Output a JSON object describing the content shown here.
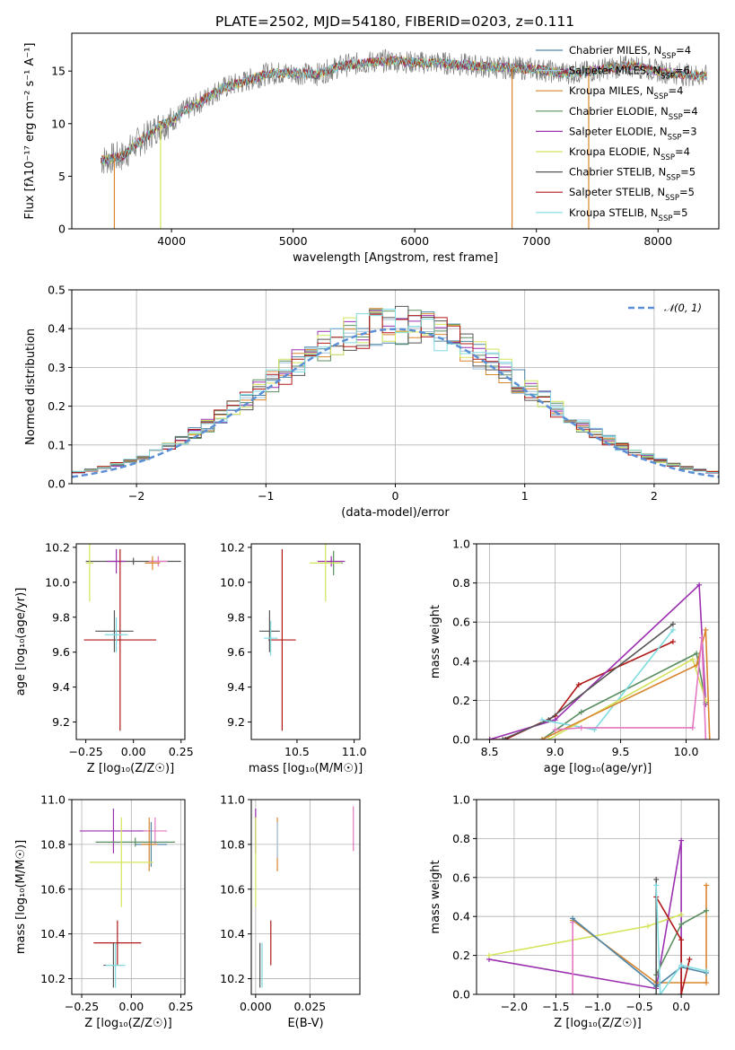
{
  "title": "PLATE=2502, MJD=54180, FIBERID=0203, z=0.111",
  "legend": [
    {
      "label": "Chabrier MILES, N",
      "sub": "SSP",
      "suffix": "=4",
      "color": "#4f86a6"
    },
    {
      "label": "Salpeter MILES, N",
      "sub": "SSP",
      "suffix": "=6",
      "color": "#9fc3dd"
    },
    {
      "label": "Kroupa MILES, N",
      "sub": "SSP",
      "suffix": "=4",
      "color": "#d9852d"
    },
    {
      "label": "Chabrier ELODIE, N",
      "sub": "SSP",
      "suffix": "=4",
      "color": "#5a8e60"
    },
    {
      "label": "Salpeter ELODIE, N",
      "sub": "SSP",
      "suffix": "=3",
      "color": "#9b30b0"
    },
    {
      "label": "Kroupa ELODIE, N",
      "sub": "SSP",
      "suffix": "=4",
      "color": "#d4e45a"
    },
    {
      "label": "Chabrier STELIB, N",
      "sub": "SSP",
      "suffix": "=5",
      "color": "#555555"
    },
    {
      "label": "Salpeter STELIB, N",
      "sub": "SSP",
      "suffix": "=5",
      "color": "#b01818"
    },
    {
      "label": "Kroupa STELIB, N",
      "sub": "SSP",
      "suffix": "=5",
      "color": "#7fdce0"
    }
  ],
  "chart_data": [
    {
      "type": "line",
      "xlabel": "wavelength [Angstrom, rest frame]",
      "ylabel": "Flux [f",
      "ylabel_main": "Flux [fλ10⁻¹⁷ erg cm⁻² s⁻¹ A⁻¹]",
      "xlim": [
        3180,
        8500
      ],
      "ylim": [
        0,
        18.6
      ],
      "xticks": [
        4000,
        5000,
        6000,
        7000,
        8000
      ],
      "yticks": [
        0,
        5,
        10,
        15
      ],
      "continuum": [
        [
          3420,
          6.5
        ],
        [
          3600,
          6.9
        ],
        [
          3700,
          8.0
        ],
        [
          3800,
          8.8
        ],
        [
          3900,
          9.8
        ],
        [
          4000,
          10.2
        ],
        [
          4100,
          11.2
        ],
        [
          4200,
          11.8
        ],
        [
          4400,
          13.3
        ],
        [
          4600,
          14.0
        ],
        [
          4800,
          14.8
        ],
        [
          5000,
          14.8
        ],
        [
          5200,
          14.7
        ],
        [
          5400,
          15.5
        ],
        [
          5600,
          15.8
        ],
        [
          5800,
          16.0
        ],
        [
          6000,
          15.8
        ],
        [
          6200,
          15.8
        ],
        [
          6400,
          15.6
        ],
        [
          6600,
          15.4
        ],
        [
          6800,
          15.3
        ],
        [
          7000,
          15.2
        ],
        [
          7200,
          14.8
        ],
        [
          7400,
          14.9
        ],
        [
          7600,
          15.3
        ],
        [
          7800,
          15.5
        ],
        [
          8000,
          15.0
        ],
        [
          8200,
          14.7
        ],
        [
          8400,
          14.5
        ]
      ]
    },
    {
      "type": "line",
      "xlabel": "(data-model)/error",
      "ylabel": "Normed distribution",
      "xlim": [
        -2.5,
        2.5
      ],
      "ylim": [
        0,
        0.5
      ],
      "xticks": [
        -2,
        -1,
        0,
        1,
        2
      ],
      "yticks": [
        0,
        0.1,
        0.2,
        0.3,
        0.4,
        0.5
      ],
      "legend": "𝒩(0, 1)",
      "gaussian_mean": 0,
      "gaussian_sigma": 1
    },
    {
      "type": "scatter",
      "xlabel": "Z [log₁₀(Z/Z☉)]",
      "ylabel": "age  [log₁₀(age/yr)]",
      "xlim": [
        -0.3,
        0.27
      ],
      "ylim": [
        9.1,
        10.22
      ],
      "xticks": [
        -0.25,
        0.0,
        0.25
      ],
      "yticks": [
        9.2,
        9.4,
        9.6,
        9.8,
        10.0,
        10.2
      ],
      "points": [
        {
          "x": 0.0,
          "y": 10.12,
          "xerr": 0.25,
          "yerr": 0.02,
          "c": "#555555"
        },
        {
          "x": -0.09,
          "y": 10.12,
          "xerr": 0.05,
          "yerr": 0.07,
          "c": "#9b30b0"
        },
        {
          "x": 0.13,
          "y": 10.12,
          "xerr": 0.05,
          "yerr": 0.03,
          "c": "#e377c2"
        },
        {
          "x": -0.07,
          "y": 9.67,
          "xerr": 0.19,
          "yerr": 0.52,
          "c": "#b01818"
        },
        {
          "x": -0.1,
          "y": 9.72,
          "xerr": 0.1,
          "yerr": 0.12,
          "c": "#555555"
        },
        {
          "x": -0.09,
          "y": 9.7,
          "xerr": 0.06,
          "yerr": 0.1,
          "c": "#7fdce0"
        },
        {
          "x": -0.23,
          "y": 10.11,
          "xerr": 0.02,
          "yerr": 0.22,
          "c": "#d4e45a"
        },
        {
          "x": 0.1,
          "y": 10.11,
          "xerr": 0.04,
          "yerr": 0.04,
          "c": "#d9852d"
        }
      ]
    },
    {
      "type": "scatter",
      "xlabel": "mass [log₁₀(M/M☉)]",
      "ylabel": "",
      "xlim": [
        10.1,
        11.05
      ],
      "ylim": [
        9.1,
        10.22
      ],
      "xticks": [
        10.5,
        11.0
      ],
      "yticks": [
        9.2,
        9.4,
        9.6,
        9.8,
        10.0,
        10.2
      ],
      "points": [
        {
          "x": 10.8,
          "y": 10.12,
          "xerr": 0.12,
          "yerr": 0.03,
          "c": "#9b30b0"
        },
        {
          "x": 10.82,
          "y": 10.11,
          "xerr": 0.08,
          "yerr": 0.07,
          "c": "#5a8e60"
        },
        {
          "x": 10.75,
          "y": 10.11,
          "xerr": 0.14,
          "yerr": 0.22,
          "c": "#d4e45a"
        },
        {
          "x": 10.37,
          "y": 9.67,
          "xerr": 0.12,
          "yerr": 0.52,
          "c": "#b01818"
        },
        {
          "x": 10.26,
          "y": 9.72,
          "xerr": 0.09,
          "yerr": 0.12,
          "c": "#555555"
        },
        {
          "x": 10.27,
          "y": 9.68,
          "xerr": 0.06,
          "yerr": 0.1,
          "c": "#7fdce0"
        }
      ]
    },
    {
      "type": "line",
      "xlabel": "age  [log₁₀(age/yr)]",
      "ylabel": "mass weight",
      "xlim": [
        8.4,
        10.25
      ],
      "ylim": [
        0,
        1.0
      ],
      "xticks": [
        8.5,
        9.0,
        9.5,
        10.0
      ],
      "yticks": [
        0,
        0.2,
        0.4,
        0.6,
        0.8,
        1.0
      ],
      "series": [
        {
          "c": "#b01818",
          "pts": [
            [
              8.5,
              0.0
            ],
            [
              8.62,
              0.0
            ],
            [
              9.0,
              0.12
            ],
            [
              9.18,
              0.28
            ],
            [
              9.9,
              0.5
            ]
          ]
        },
        {
          "c": "#9b30b0",
          "pts": [
            [
              8.5,
              0.0
            ],
            [
              9.0,
              0.1
            ],
            [
              10.1,
              0.79
            ],
            [
              10.15,
              0.18
            ]
          ]
        },
        {
          "c": "#555555",
          "pts": [
            [
              8.6,
              0.0
            ],
            [
              8.95,
              0.1
            ],
            [
              9.9,
              0.59
            ]
          ]
        },
        {
          "c": "#5a8e60",
          "pts": [
            [
              8.9,
              0.0
            ],
            [
              9.2,
              0.14
            ],
            [
              10.08,
              0.44
            ],
            [
              10.15,
              0.19
            ]
          ]
        },
        {
          "c": "#7fdce0",
          "pts": [
            [
              8.9,
              0.1
            ],
            [
              9.3,
              0.05
            ],
            [
              9.9,
              0.56
            ]
          ]
        },
        {
          "c": "#d4e45a",
          "pts": [
            [
              8.95,
              0.0
            ],
            [
              10.05,
              0.41
            ],
            [
              10.15,
              0.2
            ]
          ]
        },
        {
          "c": "#d9852d",
          "pts": [
            [
              8.9,
              0.0
            ],
            [
              10.08,
              0.38
            ],
            [
              10.15,
              0.56
            ],
            [
              10.18,
              0.0
            ]
          ]
        },
        {
          "c": "#e377c2",
          "pts": [
            [
              9.0,
              0.05
            ],
            [
              9.2,
              0.06
            ],
            [
              10.05,
              0.06
            ],
            [
              10.12,
              0.52
            ],
            [
              10.15,
              0.0
            ]
          ]
        }
      ]
    },
    {
      "type": "scatter",
      "xlabel": "Z [log₁₀(Z/Z☉)]",
      "ylabel": "mass [log₁₀(M/M☉)]",
      "xlim": [
        -0.3,
        0.27
      ],
      "ylim": [
        10.13,
        11.0
      ],
      "xticks": [
        -0.25,
        0.0,
        0.25
      ],
      "yticks": [
        10.2,
        10.4,
        10.6,
        10.8,
        11.0
      ],
      "points": [
        {
          "x": -0.09,
          "y": 10.86,
          "xerr": 0.17,
          "yerr": 0.1,
          "c": "#9b30b0"
        },
        {
          "x": 0.12,
          "y": 10.86,
          "xerr": 0.06,
          "yerr": 0.06,
          "c": "#e377c2"
        },
        {
          "x": 0.1,
          "y": 10.8,
          "xerr": 0.08,
          "yerr": 0.1,
          "c": "#4f86a6"
        },
        {
          "x": 0.02,
          "y": 10.81,
          "xerr": 0.2,
          "yerr": 0.02,
          "c": "#5a8e60"
        },
        {
          "x": 0.09,
          "y": 10.8,
          "xerr": 0.04,
          "yerr": 0.12,
          "c": "#d9852d"
        },
        {
          "x": -0.05,
          "y": 10.72,
          "xerr": 0.16,
          "yerr": 0.2,
          "c": "#d4e45a"
        },
        {
          "x": -0.07,
          "y": 10.36,
          "xerr": 0.12,
          "yerr": 0.1,
          "c": "#b01818"
        },
        {
          "x": -0.09,
          "y": 10.26,
          "xerr": 0.05,
          "yerr": 0.1,
          "c": "#555555"
        },
        {
          "x": -0.08,
          "y": 10.26,
          "xerr": 0.05,
          "yerr": 0.1,
          "c": "#7fdce0"
        }
      ]
    },
    {
      "type": "scatter",
      "xlabel": "E(B-V)",
      "ylabel": "",
      "xlim": [
        -0.002,
        0.048
      ],
      "ylim": [
        10.13,
        11.0
      ],
      "xticks": [
        0.0,
        0.025
      ],
      "yticks": [
        10.2,
        10.4,
        10.6,
        10.8,
        11.0
      ],
      "points": [
        {
          "x": 0.0,
          "y": 10.86,
          "xerr": 0,
          "yerr": 0.1,
          "c": "#9b30b0"
        },
        {
          "x": 0.0,
          "y": 10.72,
          "xerr": 0,
          "yerr": 0.2,
          "c": "#d4e45a"
        },
        {
          "x": 0.01,
          "y": 10.8,
          "xerr": 0,
          "yerr": 0.12,
          "c": "#d9852d"
        },
        {
          "x": 0.01,
          "y": 10.82,
          "xerr": 0,
          "yerr": 0.08,
          "c": "#9fc3dd"
        },
        {
          "x": 0.007,
          "y": 10.36,
          "xerr": 0,
          "yerr": 0.1,
          "c": "#b01818"
        },
        {
          "x": 0.002,
          "y": 10.26,
          "xerr": 0,
          "yerr": 0.1,
          "c": "#555555"
        },
        {
          "x": 0.003,
          "y": 10.26,
          "xerr": 0,
          "yerr": 0.1,
          "c": "#7fdce0"
        },
        {
          "x": 0.045,
          "y": 10.87,
          "xerr": 0,
          "yerr": 0.1,
          "c": "#e377c2"
        }
      ]
    },
    {
      "type": "line",
      "xlabel": "Z [log₁₀(Z/Z☉)]",
      "ylabel": "mass weight",
      "xlim": [
        -2.45,
        0.45
      ],
      "ylim": [
        0,
        1.0
      ],
      "xticks": [
        -2.0,
        -1.5,
        -1.0,
        -0.5,
        0.0
      ],
      "yticks": [
        0,
        0.2,
        0.4,
        0.6,
        0.8,
        1.0
      ],
      "series": [
        {
          "c": "#9b30b0",
          "pts": [
            [
              -2.3,
              0.18
            ],
            [
              -0.3,
              0.03
            ],
            [
              0.0,
              0.79
            ],
            [
              0.0,
              0.0
            ]
          ]
        },
        {
          "c": "#d4e45a",
          "pts": [
            [
              -2.3,
              0.2
            ],
            [
              -0.4,
              0.35
            ],
            [
              0.0,
              0.41
            ]
          ]
        },
        {
          "c": "#d9852d",
          "pts": [
            [
              -1.3,
              0.38
            ],
            [
              -0.3,
              0.06
            ],
            [
              0.3,
              0.06
            ],
            [
              0.3,
              0.56
            ]
          ]
        },
        {
          "c": "#e377c2",
          "pts": [
            [
              -1.3,
              0.37
            ],
            [
              -1.3,
              0.0
            ]
          ]
        },
        {
          "c": "#4f86a6",
          "pts": [
            [
              -1.3,
              0.39
            ],
            [
              -0.3,
              0.04
            ],
            [
              0.0,
              0.14
            ],
            [
              0.3,
              0.11
            ]
          ]
        },
        {
          "c": "#5a8e60",
          "pts": [
            [
              -0.3,
              0.1
            ],
            [
              0.0,
              0.36
            ],
            [
              0.3,
              0.43
            ]
          ]
        },
        {
          "c": "#b01818",
          "pts": [
            [
              -0.3,
              0.5
            ],
            [
              0.0,
              0.28
            ],
            [
              0.0,
              0.0
            ],
            [
              0.1,
              0.18
            ]
          ]
        },
        {
          "c": "#555555",
          "pts": [
            [
              -0.3,
              0.59
            ],
            [
              -0.3,
              0.0
            ]
          ]
        },
        {
          "c": "#7fdce0",
          "pts": [
            [
              -0.3,
              0.56
            ],
            [
              -0.25,
              0.0
            ],
            [
              0.0,
              0.15
            ],
            [
              0.3,
              0.12
            ]
          ]
        }
      ]
    }
  ]
}
